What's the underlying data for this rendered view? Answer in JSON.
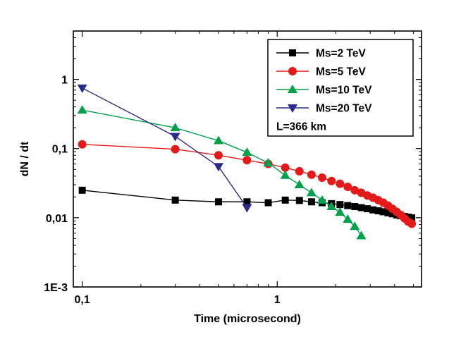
{
  "chart_data": {
    "type": "line",
    "title": "",
    "xlabel": "Time (microsecond)",
    "ylabel": "dN / dt",
    "x_scale": "log",
    "y_scale": "log",
    "xlim": [
      0.09,
      5.5
    ],
    "ylim": [
      0.001,
      5
    ],
    "x_ticks": [
      {
        "value": 0.1,
        "label": "0,1"
      },
      {
        "value": 1,
        "label": "1"
      }
    ],
    "y_ticks": [
      {
        "value": 0.001,
        "label": "1E-3"
      },
      {
        "value": 0.01,
        "label": "0,01"
      },
      {
        "value": 0.1,
        "label": "0,1"
      },
      {
        "value": 1,
        "label": "1"
      }
    ],
    "legend_position": "top-right",
    "annotation": "L=366 km",
    "series": [
      {
        "name": "Ms=2  TeV",
        "color": "#000000",
        "marker": "square",
        "x": [
          0.1,
          0.3,
          0.5,
          0.7,
          0.9,
          1.1,
          1.3,
          1.5,
          1.7,
          1.9,
          2.1,
          2.3,
          2.5,
          2.7,
          2.9,
          3.1,
          3.3,
          3.5,
          3.7,
          3.9,
          4.1,
          4.3,
          4.5,
          4.7,
          4.9
        ],
        "y": [
          0.025,
          0.018,
          0.017,
          0.017,
          0.0165,
          0.018,
          0.0178,
          0.017,
          0.0165,
          0.016,
          0.0155,
          0.015,
          0.0145,
          0.014,
          0.0135,
          0.013,
          0.0126,
          0.0122,
          0.0118,
          0.0114,
          0.011,
          0.0107,
          0.0104,
          0.0102,
          0.01
        ]
      },
      {
        "name": "Ms=5  TeV",
        "color": "#e41a1a",
        "marker": "circle",
        "x": [
          0.1,
          0.3,
          0.5,
          0.7,
          0.9,
          1.1,
          1.3,
          1.5,
          1.7,
          1.9,
          2.1,
          2.3,
          2.5,
          2.7,
          2.9,
          3.1,
          3.3,
          3.5,
          3.7,
          3.9,
          4.1,
          4.3,
          4.5,
          4.7,
          4.9
        ],
        "y": [
          0.115,
          0.098,
          0.08,
          0.068,
          0.06,
          0.053,
          0.047,
          0.042,
          0.038,
          0.034,
          0.031,
          0.028,
          0.025,
          0.023,
          0.021,
          0.0195,
          0.018,
          0.0165,
          0.015,
          0.0135,
          0.0122,
          0.011,
          0.0098,
          0.0088,
          0.0082
        ]
      },
      {
        "name": "Ms=10 TeV",
        "color": "#00a14b",
        "marker": "triangle-up",
        "x": [
          0.1,
          0.3,
          0.5,
          0.7,
          0.9,
          1.1,
          1.3,
          1.5,
          1.7,
          1.9,
          2.1,
          2.3,
          2.5,
          2.7
        ],
        "y": [
          0.36,
          0.2,
          0.13,
          0.088,
          0.062,
          0.041,
          0.03,
          0.023,
          0.018,
          0.0145,
          0.012,
          0.0095,
          0.0075,
          0.0055
        ]
      },
      {
        "name": "Ms=20 TeV",
        "color": "#2a2a8c",
        "marker": "triangle-down",
        "x": [
          0.1,
          0.3,
          0.5,
          0.7
        ],
        "y": [
          0.75,
          0.15,
          0.055,
          0.014
        ]
      }
    ]
  }
}
